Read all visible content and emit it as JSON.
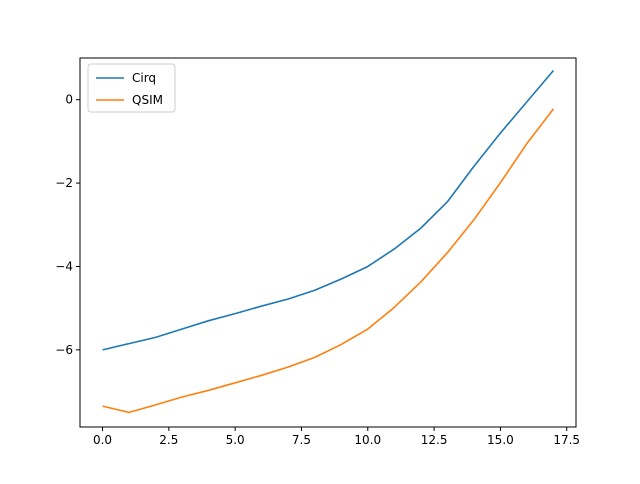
{
  "chart_data": {
    "type": "line",
    "title": "",
    "xlabel": "",
    "ylabel": "",
    "xlim": [
      -0.85,
      17.85
    ],
    "ylim": [
      -7.85,
      1.0
    ],
    "xticks": [
      0.0,
      2.5,
      5.0,
      7.5,
      10.0,
      12.5,
      15.0,
      17.5
    ],
    "xtick_labels": [
      "0.0",
      "2.5",
      "5.0",
      "7.5",
      "10.0",
      "12.5",
      "15.0",
      "17.5"
    ],
    "yticks": [
      -6,
      -4,
      -2,
      0
    ],
    "ytick_labels": [
      "−6",
      "−4",
      "−2",
      "0"
    ],
    "grid": false,
    "legend_position": "top-left",
    "x": [
      0,
      1,
      2,
      3,
      4,
      5,
      6,
      7,
      8,
      9,
      10,
      11,
      12,
      13,
      14,
      15,
      16,
      17
    ],
    "series": [
      {
        "name": "Cirq",
        "color": "#1f77b4",
        "values": [
          -6.0,
          -5.85,
          -5.7,
          -5.5,
          -5.3,
          -5.13,
          -4.95,
          -4.78,
          -4.57,
          -4.3,
          -4.0,
          -3.58,
          -3.08,
          -2.45,
          -1.6,
          -0.8,
          -0.05,
          0.7
        ]
      },
      {
        "name": "QSIM",
        "color": "#ff7f0e",
        "values": [
          -7.35,
          -7.5,
          -7.32,
          -7.13,
          -6.97,
          -6.79,
          -6.61,
          -6.41,
          -6.18,
          -5.87,
          -5.5,
          -4.98,
          -4.37,
          -3.67,
          -2.88,
          -1.99,
          -1.05,
          -0.22
        ]
      }
    ]
  }
}
